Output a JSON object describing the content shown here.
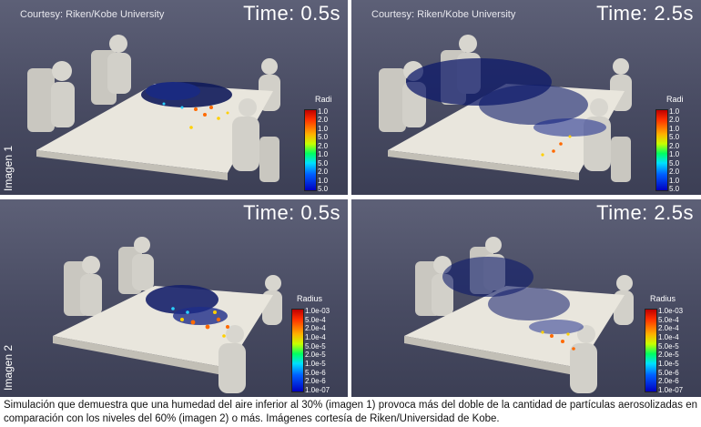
{
  "panels": [
    {
      "courtesy": "Courtesy: Riken/Kobe University",
      "time": "Time: 0.5s",
      "row_label": "Imagen 1",
      "legend_title": "Radi",
      "ticks": [
        "1.0",
        "2.0",
        "1.0",
        "5.0",
        "2.0",
        "1.0",
        "5.0",
        "2.0",
        "1.0",
        "5.0"
      ]
    },
    {
      "courtesy": "Courtesy: Riken/Kobe University",
      "time": "Time: 2.5s",
      "row_label": "",
      "legend_title": "Radi",
      "ticks": [
        "1.0",
        "2.0",
        "1.0",
        "5.0",
        "2.0",
        "1.0",
        "5.0",
        "2.0",
        "1.0",
        "5.0"
      ]
    },
    {
      "courtesy": "",
      "time": "Time: 0.5s",
      "row_label": "Imagen 2",
      "legend_title": "Radius",
      "ticks": [
        "1.0e-03",
        "5.0e-4",
        "2.0e-4",
        "1.0e-4",
        "5.0e-5",
        "2.0e-5",
        "1.0e-5",
        "5.0e-6",
        "2.0e-6",
        "1.0e-07"
      ]
    },
    {
      "courtesy": "",
      "time": "Time: 2.5s",
      "row_label": "",
      "legend_title": "Radius",
      "ticks": [
        "1.0e-03",
        "5.0e-4",
        "2.0e-4",
        "1.0e-4",
        "5.0e-5",
        "2.0e-5",
        "1.0e-5",
        "5.0e-6",
        "2.0e-6",
        "1.0e-07"
      ]
    }
  ],
  "caption": "Simulación que demuestra que una humedad del aire inferior al 30% (imagen 1) provoca más del doble de la cantidad de partículas aerosolizadas en comparación con los niveles del 60% (imagen 2) o más. Imágenes cortesía de Riken/Universidad de Kobe."
}
